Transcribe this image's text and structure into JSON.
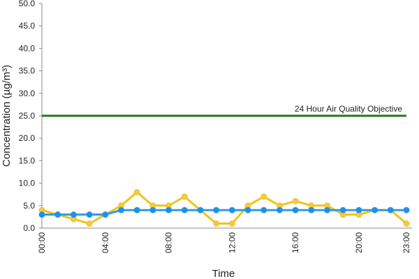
{
  "chart_data": {
    "type": "line",
    "x_label": "Time",
    "y_label": "Concentration (µg/m³)",
    "categories": [
      "00:00",
      null,
      null,
      null,
      "04:00",
      null,
      null,
      null,
      "08:00",
      null,
      null,
      null,
      "12:00",
      null,
      null,
      null,
      "16:00",
      null,
      null,
      null,
      "20:00",
      null,
      null,
      "23:00"
    ],
    "series": [
      {
        "color": "#f0c419",
        "marker_color": "#f2c94c",
        "values": [
          4,
          3,
          2,
          1,
          3,
          5,
          8,
          5,
          5,
          7,
          4,
          1,
          1,
          5,
          7,
          5,
          6,
          5,
          5,
          3,
          3,
          4,
          4,
          1
        ]
      },
      {
        "color": "#2e9be6",
        "marker_color": "#1e90e6",
        "values": [
          3,
          3,
          3,
          3,
          3,
          4,
          4,
          4,
          4,
          4,
          4,
          4,
          4,
          4,
          4,
          4,
          4,
          4,
          4,
          4,
          4,
          4,
          4,
          4
        ]
      }
    ],
    "reference_line": {
      "value": 25,
      "label": "24 Hour Air Quality Objective",
      "color": "#1f7a1f"
    },
    "ylim": [
      0,
      50
    ],
    "yticks": [
      {
        "value": 0,
        "label": "0.0"
      },
      {
        "value": 5,
        "label": "5.0"
      },
      {
        "value": 10,
        "label": "10.0"
      },
      {
        "value": 15,
        "label": "15.0"
      },
      {
        "value": 20,
        "label": "20.0"
      },
      {
        "value": 25,
        "label": "25.0"
      },
      {
        "value": 30,
        "label": "30.0"
      },
      {
        "value": 35,
        "label": "35.0"
      },
      {
        "value": 40,
        "label": "40.0"
      },
      {
        "value": 45,
        "label": "45.0"
      },
      {
        "value": 50,
        "label": "50.0"
      }
    ],
    "grid": false
  }
}
